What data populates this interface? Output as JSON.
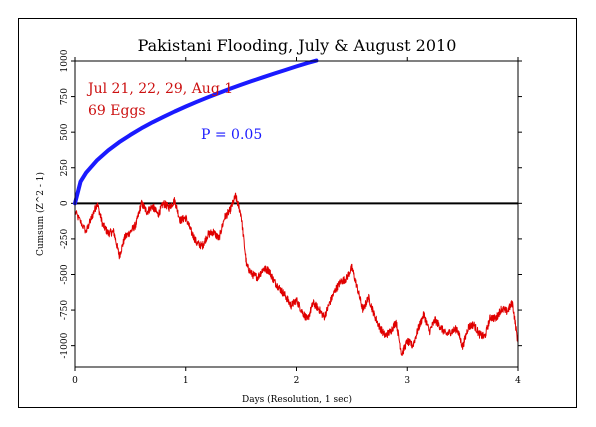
{
  "chart_data": {
    "type": "line",
    "title": "Pakistani Flooding, July & August 2010",
    "xlabel": "Days (Resolution, 1 sec)",
    "ylabel": "Cumsum (Z^2 - 1)",
    "xlim": [
      0,
      4
    ],
    "ylim": [
      -1150,
      1000
    ],
    "x_ticks": [
      0,
      1,
      2,
      3,
      4
    ],
    "y_ticks": [
      -1000,
      -750,
      -500,
      -250,
      0,
      250,
      500,
      750,
      1000
    ],
    "annotations": {
      "dates": "Jul 21, 22, 29, Aug 1",
      "eggs": "69 Eggs",
      "pvalue": "P = 0.05"
    },
    "series": [
      {
        "role": "cumulative-deviation",
        "color": "#e00000",
        "x": [
          0,
          0.1,
          0.15,
          0.2,
          0.25,
          0.3,
          0.35,
          0.4,
          0.45,
          0.5,
          0.55,
          0.6,
          0.65,
          0.7,
          0.75,
          0.8,
          0.85,
          0.9,
          0.95,
          1.0,
          1.05,
          1.1,
          1.15,
          1.2,
          1.25,
          1.3,
          1.35,
          1.4,
          1.45,
          1.5,
          1.55,
          1.6,
          1.65,
          1.7,
          1.75,
          1.8,
          1.85,
          1.9,
          1.95,
          2.0,
          2.05,
          2.1,
          2.15,
          2.2,
          2.25,
          2.3,
          2.35,
          2.4,
          2.45,
          2.5,
          2.55,
          2.6,
          2.65,
          2.7,
          2.75,
          2.8,
          2.85,
          2.9,
          2.95,
          3.0,
          3.05,
          3.1,
          3.15,
          3.2,
          3.25,
          3.3,
          3.35,
          3.4,
          3.45,
          3.5,
          3.55,
          3.6,
          3.65,
          3.7,
          3.75,
          3.8,
          3.85,
          3.9,
          3.95,
          4.0
        ],
        "y": [
          -60,
          -200,
          -100,
          0,
          -150,
          -210,
          -200,
          -370,
          -240,
          -200,
          -150,
          0,
          -60,
          -20,
          -80,
          0,
          -30,
          20,
          -120,
          -100,
          -200,
          -280,
          -300,
          -220,
          -200,
          -250,
          -100,
          -50,
          50,
          -80,
          -440,
          -500,
          -520,
          -460,
          -470,
          -550,
          -600,
          -650,
          -720,
          -680,
          -760,
          -820,
          -700,
          -740,
          -800,
          -700,
          -610,
          -550,
          -530,
          -450,
          -600,
          -750,
          -660,
          -780,
          -870,
          -930,
          -900,
          -830,
          -1060,
          -970,
          -1000,
          -880,
          -780,
          -900,
          -820,
          -870,
          -920,
          -900,
          -880,
          -1010,
          -870,
          -850,
          -920,
          -940,
          -800,
          -810,
          -740,
          -760,
          -700,
          -980
        ]
      },
      {
        "role": "p-0.05-envelope",
        "color": "#1a1aff",
        "x": [
          0,
          0.05,
          0.1,
          0.2,
          0.3,
          0.4,
          0.5,
          0.6,
          0.7,
          0.8,
          0.9,
          1.0,
          1.1,
          1.2,
          1.3,
          1.4,
          1.5,
          1.6,
          1.7,
          1.8,
          1.9,
          2.0,
          2.1,
          2.18
        ],
        "y": [
          0,
          152,
          215,
          304,
          372,
          430,
          481,
          527,
          569,
          608,
          645,
          680,
          713,
          745,
          775,
          805,
          833,
          860,
          886,
          912,
          937,
          962,
          986,
          1003
        ]
      }
    ]
  }
}
